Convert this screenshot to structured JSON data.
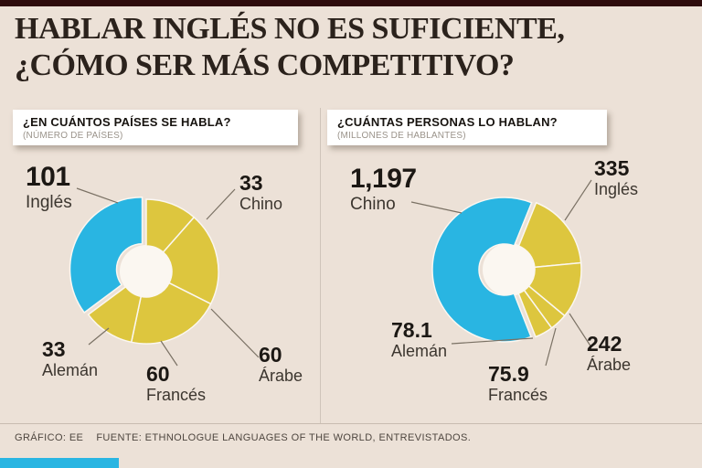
{
  "page": {
    "title_line1": "HABLAR INGLÉS NO ES SUFICIENTE,",
    "title_line2": "¿CÓMO SER MÁS COMPETITIVO?"
  },
  "colors": {
    "background": "#ece1d7",
    "top_bar": "#2e0c0c",
    "blue": "#29b5e2",
    "yellow": "#ddc63e",
    "hole": "#fbf7f1",
    "leader_line": "#7a7164"
  },
  "footer": {
    "credit": "GRÁFICO: EE",
    "source": "FUENTE: ETHNOLOGUE LANGUAGES OF THE WORLD, ENTREVISTADOS."
  },
  "chart_data": [
    {
      "type": "pie",
      "title": "¿EN CUÁNTOS PAÍSES SE HABLA?",
      "subtitle": "(NÚMERO DE PAÍSES)",
      "legend_position": "callouts",
      "items": [
        {
          "label": "Chino",
          "value": 33,
          "value_display": "33",
          "color": "#ddc63e"
        },
        {
          "label": "Árabe",
          "value": 60,
          "value_display": "60",
          "color": "#ddc63e"
        },
        {
          "label": "Francés",
          "value": 60,
          "value_display": "60",
          "color": "#ddc63e"
        },
        {
          "label": "Alemán",
          "value": 33,
          "value_display": "33",
          "color": "#ddc63e"
        },
        {
          "label": "Inglés",
          "value": 101,
          "value_display": "101",
          "color": "#29b5e2",
          "highlight": true
        }
      ]
    },
    {
      "type": "pie",
      "title": "¿CUÁNTAS PERSONAS LO HABLAN?",
      "subtitle": "(MILLONES DE HABLANTES)",
      "legend_position": "callouts",
      "items": [
        {
          "label": "Inglés",
          "value": 335,
          "value_display": "335",
          "color": "#ddc63e"
        },
        {
          "label": "Árabe",
          "value": 242,
          "value_display": "242",
          "color": "#ddc63e"
        },
        {
          "label": "Francés",
          "value": 75.9,
          "value_display": "75.9",
          "color": "#ddc63e"
        },
        {
          "label": "Alemán",
          "value": 78.1,
          "value_display": "78.1",
          "color": "#ddc63e"
        },
        {
          "label": "Chino",
          "value": 1197,
          "value_display": "1,197",
          "color": "#29b5e2",
          "highlight": true
        }
      ]
    }
  ]
}
